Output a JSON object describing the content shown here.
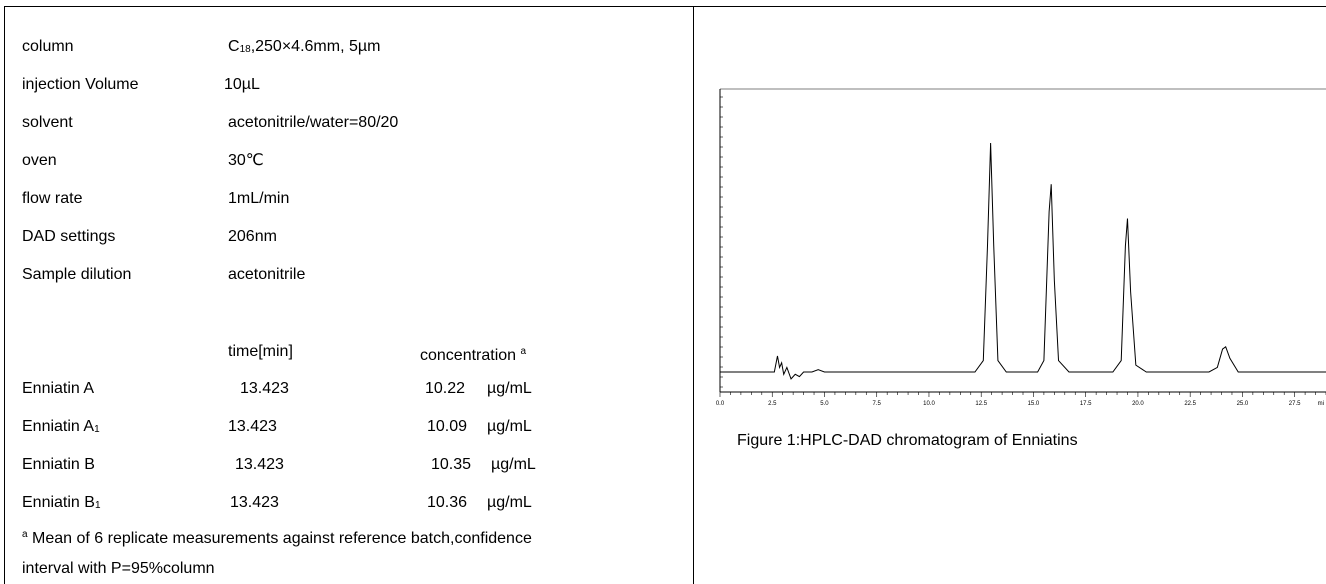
{
  "params": [
    {
      "key": "column",
      "value_main": "C",
      "value_sub": "18",
      "value_rest": ",250×4.6mm, 5µm"
    },
    {
      "key": "injection Volume",
      "value": "10µL"
    },
    {
      "key": "solvent",
      "value": "acetonitrile/water=80/20"
    },
    {
      "key": "oven",
      "value": "30℃"
    },
    {
      "key": "flow rate",
      "value": "1mL/min"
    },
    {
      "key": "DAD settings",
      "value": "206nm"
    },
    {
      "key": "Sample dilution",
      "value": "acetonitrile"
    }
  ],
  "results_header": {
    "time": "time[min]",
    "concentration": "concentration",
    "concentration_sup": "a"
  },
  "results": [
    {
      "name": "Enniatin A",
      "name_sub": "",
      "time": "13.423",
      "conc": "10.22",
      "unit": "µg/mL"
    },
    {
      "name": "Enniatin A",
      "name_sub": "1",
      "time": "13.423",
      "conc": "10.09",
      "unit": "µg/mL"
    },
    {
      "name": "Enniatin B",
      "name_sub": "",
      "time": "13.423",
      "conc": "10.35",
      "unit": "µg/mL"
    },
    {
      "name": "Enniatin B",
      "name_sub": "1",
      "time": "13.423",
      "conc": "10.36",
      "unit": "µg/mL"
    }
  ],
  "footnote": {
    "sup": "a",
    "line1": " Mean of 6 replicate measurements against reference batch,confidence",
    "line2": "interval with P=95%column"
  },
  "figure": {
    "caption": "Figure 1:HPLC-DAD chromatogram of Enniatins",
    "x_tick_labels": [
      "0.0",
      "2.5",
      "5.0",
      "7.5",
      "10.0",
      "12.5",
      "15.0",
      "17.5",
      "20.0",
      "22.5",
      "25.0",
      "27.5"
    ],
    "x_unit": "mi"
  },
  "chart_data": {
    "type": "line",
    "title": "",
    "xlabel": "",
    "ylabel": "",
    "xlim": [
      0,
      29
    ],
    "ylim": [
      0,
      1
    ],
    "series": [
      {
        "x": [
          0.0,
          2.6,
          2.75,
          2.85,
          2.95,
          3.05,
          3.2,
          3.4,
          3.6,
          3.8,
          4.0,
          4.4,
          4.7,
          5.0,
          12.2,
          12.6,
          12.8,
          12.95,
          13.1,
          13.3,
          13.7,
          15.2,
          15.5,
          15.75,
          15.85,
          16.0,
          16.2,
          16.7,
          18.8,
          19.2,
          19.4,
          19.5,
          19.65,
          19.9,
          20.4,
          23.4,
          23.8,
          24.05,
          24.2,
          24.4,
          24.8,
          29.0
        ],
        "y": [
          0.0,
          0.0,
          0.07,
          0.02,
          0.04,
          -0.01,
          0.02,
          -0.03,
          -0.01,
          -0.02,
          0.0,
          0.0,
          0.01,
          0.0,
          0.0,
          0.05,
          0.55,
          1.0,
          0.55,
          0.05,
          0.0,
          0.0,
          0.05,
          0.7,
          0.82,
          0.4,
          0.05,
          0.0,
          0.0,
          0.05,
          0.55,
          0.67,
          0.35,
          0.03,
          0.0,
          0.0,
          0.02,
          0.1,
          0.11,
          0.06,
          0.0,
          0.0
        ]
      }
    ],
    "peaks": [
      {
        "x": 2.75,
        "y": 0.07
      },
      {
        "x": 12.95,
        "y": 1.0
      },
      {
        "x": 15.85,
        "y": 0.82
      },
      {
        "x": 19.5,
        "y": 0.67
      },
      {
        "x": 24.2,
        "y": 0.11
      }
    ]
  }
}
